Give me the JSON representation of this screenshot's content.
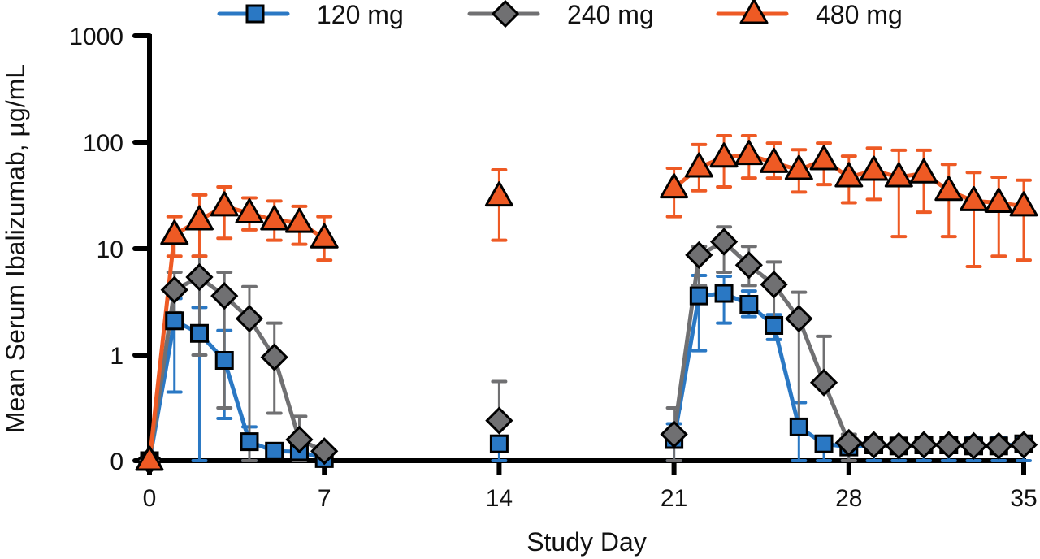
{
  "chart_data": {
    "type": "line",
    "title": "",
    "xlabel": "Study Day",
    "ylabel": "Mean Serum Ibalizumab, µg/mL",
    "yscale": "log (with 0 baseline)",
    "xlim": [
      0,
      35
    ],
    "ylim": [
      0,
      1000
    ],
    "x_ticks": [
      0,
      7,
      14,
      21,
      28,
      35
    ],
    "x_tick_labels": [
      "0",
      "7",
      "14",
      "21",
      "28",
      "35"
    ],
    "y_ticks": [
      0,
      1,
      10,
      100,
      1000
    ],
    "y_tick_labels": [
      "0",
      "1",
      "10",
      "100",
      "1000"
    ],
    "grid": false,
    "legend_position": "top",
    "error_bars": true,
    "series": [
      {
        "name": "120 mg",
        "color": "#2a78c4",
        "marker": "square",
        "segments": [
          [
            {
              "x": 0,
              "y": 0,
              "lo": 0,
              "hi": 0
            },
            {
              "x": 1,
              "y": 2.1,
              "lo": 0.65,
              "hi": 3.4
            },
            {
              "x": 2,
              "y": 1.6,
              "lo": 0.0,
              "hi": 2.8
            },
            {
              "x": 3,
              "y": 0.95,
              "lo": 0.4,
              "hi": 1.7
            },
            {
              "x": 4,
              "y": 0.18,
              "lo": 0.0,
              "hi": 0.32
            },
            {
              "x": 5,
              "y": 0.09,
              "lo": 0.09,
              "hi": 0.09
            },
            {
              "x": 6,
              "y": 0.085,
              "lo": 0.085,
              "hi": 0.085
            },
            {
              "x": 7,
              "y": 0.02,
              "lo": 0.02,
              "hi": 0.02
            }
          ],
          [
            {
              "x": 14,
              "y": 0.16,
              "lo": 0.0,
              "hi": 0.23
            }
          ],
          [
            {
              "x": 21,
              "y": 0.2,
              "lo": 0.0,
              "hi": 0.35
            },
            {
              "x": 22,
              "y": 3.6,
              "lo": 1.1,
              "hi": 5.6
            },
            {
              "x": 23,
              "y": 3.8,
              "lo": 2.0,
              "hi": 5.5
            },
            {
              "x": 24,
              "y": 3.0,
              "lo": 2.3,
              "hi": 4.0
            },
            {
              "x": 25,
              "y": 1.9,
              "lo": 1.4,
              "hi": 2.4
            },
            {
              "x": 26,
              "y": 0.32,
              "lo": 0.0,
              "hi": 0.55
            },
            {
              "x": 27,
              "y": 0.16,
              "lo": 0.0,
              "hi": 0.22
            },
            {
              "x": 28,
              "y": 0.13,
              "lo": 0.0,
              "hi": 0.2
            },
            {
              "x": 29,
              "y": 0.15,
              "lo": 0.0,
              "hi": 0.22
            },
            {
              "x": 30,
              "y": 0.14,
              "lo": 0.0,
              "hi": 0.2
            },
            {
              "x": 31,
              "y": 0.15,
              "lo": 0.0,
              "hi": 0.2
            },
            {
              "x": 32,
              "y": 0.15,
              "lo": 0.0,
              "hi": 0.22
            },
            {
              "x": 33,
              "y": 0.14,
              "lo": 0.0,
              "hi": 0.22
            },
            {
              "x": 34,
              "y": 0.14,
              "lo": 0.0,
              "hi": 0.22
            },
            {
              "x": 35,
              "y": 0.16,
              "lo": 0.0,
              "hi": 0.23
            }
          ]
        ]
      },
      {
        "name": "240 mg",
        "color": "#707072",
        "marker": "diamond",
        "segments": [
          [
            {
              "x": 0,
              "y": 0,
              "lo": 0,
              "hi": 0
            },
            {
              "x": 1,
              "y": 4.1,
              "lo": 2.5,
              "hi": 6.0
            },
            {
              "x": 2,
              "y": 5.4,
              "lo": 1.0,
              "hi": 8.5
            },
            {
              "x": 3,
              "y": 3.6,
              "lo": 0.5,
              "hi": 6.0
            },
            {
              "x": 4,
              "y": 2.2,
              "lo": 0.0,
              "hi": 4.4
            },
            {
              "x": 5,
              "y": 0.98,
              "lo": 0.45,
              "hi": 2.0
            },
            {
              "x": 6,
              "y": 0.2,
              "lo": 0.0,
              "hi": 0.42
            },
            {
              "x": 7,
              "y": 0.09,
              "lo": 0.09,
              "hi": 0.09
            }
          ],
          [
            {
              "x": 14,
              "y": 0.38,
              "lo": 0.38,
              "hi": 0.75
            }
          ],
          [
            {
              "x": 21,
              "y": 0.25,
              "lo": 0.0,
              "hi": 0.5
            },
            {
              "x": 22,
              "y": 8.7,
              "lo": 4.5,
              "hi": 10.5
            },
            {
              "x": 23,
              "y": 11.6,
              "lo": 6.0,
              "hi": 16.0
            },
            {
              "x": 24,
              "y": 7.0,
              "lo": 4.5,
              "hi": 10.5
            },
            {
              "x": 25,
              "y": 4.6,
              "lo": 2.2,
              "hi": 7.5
            },
            {
              "x": 26,
              "y": 2.2,
              "lo": 0.28,
              "hi": 3.9
            },
            {
              "x": 27,
              "y": 0.74,
              "lo": 0.74,
              "hi": 1.5
            },
            {
              "x": 28,
              "y": 0.17,
              "lo": 0.0,
              "hi": 0.25
            },
            {
              "x": 29,
              "y": 0.15,
              "lo": 0.15,
              "hi": 0.15
            },
            {
              "x": 30,
              "y": 0.14,
              "lo": 0.14,
              "hi": 0.14
            },
            {
              "x": 31,
              "y": 0.15,
              "lo": 0.15,
              "hi": 0.15
            },
            {
              "x": 32,
              "y": 0.15,
              "lo": 0.15,
              "hi": 0.15
            },
            {
              "x": 33,
              "y": 0.14,
              "lo": 0.14,
              "hi": 0.14
            },
            {
              "x": 34,
              "y": 0.14,
              "lo": 0.14,
              "hi": 0.14
            },
            {
              "x": 35,
              "y": 0.15,
              "lo": 0.15,
              "hi": 0.15
            }
          ]
        ]
      },
      {
        "name": "480 mg",
        "color": "#ee5a24",
        "marker": "triangle",
        "segments": [
          [
            {
              "x": 0,
              "y": 0,
              "lo": 0,
              "hi": 0
            },
            {
              "x": 1,
              "y": 13.5,
              "lo": 8.5,
              "hi": 20
            },
            {
              "x": 2,
              "y": 18.5,
              "lo": 8.5,
              "hi": 32
            },
            {
              "x": 3,
              "y": 25,
              "lo": 12.5,
              "hi": 38
            },
            {
              "x": 4,
              "y": 21.5,
              "lo": 15,
              "hi": 30
            },
            {
              "x": 5,
              "y": 18.5,
              "lo": 12,
              "hi": 28
            },
            {
              "x": 6,
              "y": 17.5,
              "lo": 11,
              "hi": 25
            },
            {
              "x": 7,
              "y": 12.5,
              "lo": 7.8,
              "hi": 20
            }
          ],
          [
            {
              "x": 14,
              "y": 31,
              "lo": 12,
              "hi": 55
            }
          ],
          [
            {
              "x": 21,
              "y": 37,
              "lo": 20,
              "hi": 57
            },
            {
              "x": 22,
              "y": 58,
              "lo": 35,
              "hi": 95
            },
            {
              "x": 23,
              "y": 72,
              "lo": 38,
              "hi": 115
            },
            {
              "x": 24,
              "y": 76,
              "lo": 46,
              "hi": 115
            },
            {
              "x": 25,
              "y": 64,
              "lo": 46,
              "hi": 98
            },
            {
              "x": 26,
              "y": 55,
              "lo": 34,
              "hi": 85
            },
            {
              "x": 27,
              "y": 68,
              "lo": 40,
              "hi": 98
            },
            {
              "x": 28,
              "y": 47,
              "lo": 27,
              "hi": 74
            },
            {
              "x": 29,
              "y": 54,
              "lo": 29,
              "hi": 88
            },
            {
              "x": 30,
              "y": 47,
              "lo": 13,
              "hi": 84
            },
            {
              "x": 31,
              "y": 51,
              "lo": 22,
              "hi": 84
            },
            {
              "x": 32,
              "y": 35,
              "lo": 13,
              "hi": 62
            },
            {
              "x": 33,
              "y": 28,
              "lo": 6.8,
              "hi": 52
            },
            {
              "x": 34,
              "y": 27,
              "lo": 8.5,
              "hi": 47
            },
            {
              "x": 35,
              "y": 25,
              "lo": 7.8,
              "hi": 44
            }
          ]
        ]
      }
    ]
  }
}
